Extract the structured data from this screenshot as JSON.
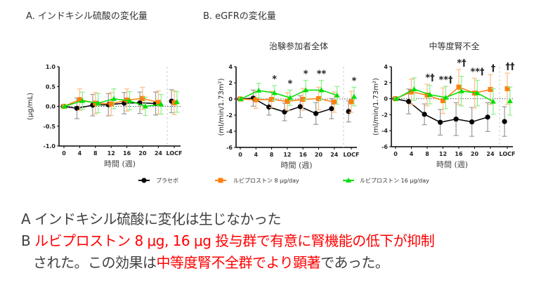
{
  "section_a_title": "A. インドキシル硫酸の変化量",
  "section_b_title": "B. eGFRの変化量",
  "colors": {
    "placebo": "#000000",
    "dose8": "#ff7f0e",
    "dose16": "#00e000",
    "placebo_err": "#a0a0a0",
    "dose8_err": "#ffc08a",
    "dose16_err": "#90f090",
    "highlight": "#ff0000"
  },
  "legend": [
    {
      "label": "プラセボ",
      "marker": "circle"
    },
    {
      "label": "ルビプロストン 8 μg/day",
      "marker": "square"
    },
    {
      "label": "ルビプロストン 16 μg/day",
      "marker": "triangle"
    }
  ],
  "chart_data": [
    {
      "type": "line",
      "title": "",
      "xlabel": "時間 (週)",
      "ylabel": "(μg/mL)",
      "categories": [
        "0",
        "4",
        "8",
        "12",
        "16",
        "20",
        "24",
        "LOCF"
      ],
      "ylim": [
        -1,
        1
      ],
      "yticks": [
        "1.0",
        "0.5",
        "0.0",
        "-0.5",
        "-1.0"
      ],
      "ytick_values": [
        1,
        0.5,
        0,
        -0.5,
        -1
      ],
      "reference_line": 0,
      "series": [
        {
          "name": "プラセボ",
          "values": [
            0,
            -0.05,
            0.03,
            0.04,
            0.08,
            0.09,
            0.07,
            0.13
          ],
          "error": [
            0.03,
            0.26,
            0.27,
            0.28,
            0.27,
            0.27,
            0.29,
            0.29
          ]
        },
        {
          "name": "ルビプロストン 8 μg/day",
          "values": [
            0,
            0.17,
            0.08,
            0.06,
            0.16,
            0.2,
            0.1,
            0.09
          ],
          "error": [
            0.03,
            0.27,
            0.27,
            0.29,
            0.28,
            0.28,
            0.29,
            0.3
          ]
        },
        {
          "name": "ルビプロストン 16 μg/day",
          "values": [
            0,
            0.14,
            0.08,
            0.19,
            0.14,
            0.0,
            0.05,
            0.11
          ],
          "error": [
            0.03,
            0.22,
            0.24,
            0.25,
            0.23,
            0.23,
            0.25,
            0.26
          ]
        }
      ],
      "annotations": []
    },
    {
      "type": "line",
      "title": "治験参加者全体",
      "xlabel": "時間 (週)",
      "ylabel": "(ml/min/1.73m²)",
      "categories": [
        "0",
        "4",
        "8",
        "12",
        "16",
        "20",
        "24",
        "LOCF"
      ],
      "ylim": [
        -6,
        4
      ],
      "yticks": [
        "4",
        "2",
        "0",
        "-2",
        "-4",
        "-6"
      ],
      "ytick_values": [
        4,
        2,
        0,
        -2,
        -4,
        -6
      ],
      "reference_line": 0,
      "series": [
        {
          "name": "プラセボ",
          "values": [
            0,
            0.1,
            -1.0,
            -1.6,
            -0.95,
            -1.8,
            -1.2,
            -1.55
          ],
          "error": [
            0.1,
            1.0,
            1.0,
            1.1,
            1.35,
            1.35,
            1.25,
            1.3
          ]
        },
        {
          "name": "ルビプロストン 8 μg/day",
          "values": [
            0,
            -0.1,
            -0.05,
            -0.3,
            -0.05,
            0.05,
            -0.4,
            -0.35
          ],
          "error": [
            0.1,
            1.05,
            1.0,
            1.1,
            1.35,
            1.4,
            1.25,
            1.3
          ]
        },
        {
          "name": "ルビプロストン 16 μg/day",
          "values": [
            0,
            1.05,
            0.75,
            0.15,
            1.1,
            1.1,
            0.45,
            0.3
          ],
          "error": [
            0.1,
            0.9,
            0.9,
            0.95,
            1.2,
            1.2,
            1.1,
            1.15
          ]
        }
      ],
      "annotations": [
        {
          "x": "8",
          "text": "*"
        },
        {
          "x": "12",
          "text": "*"
        },
        {
          "x": "16",
          "text": "*"
        },
        {
          "x": "20",
          "text": "**"
        },
        {
          "x": "LOCF",
          "text": "*"
        }
      ]
    },
    {
      "type": "line",
      "title": "中等度腎不全",
      "xlabel": "時間 (週)",
      "ylabel": "(ml/min/1.73m²)",
      "categories": [
        "0",
        "4",
        "8",
        "12",
        "16",
        "20",
        "24",
        "LOCF"
      ],
      "ylim": [
        -6,
        4
      ],
      "yticks": [
        "4",
        "2",
        "0",
        "-2",
        "-4",
        "-6"
      ],
      "ytick_values": [
        4,
        2,
        0,
        -2,
        -4,
        -6
      ],
      "reference_line": 0,
      "series": [
        {
          "name": "プラセボ",
          "values": [
            0,
            -0.35,
            -1.95,
            -2.95,
            -2.55,
            -2.9,
            -2.3,
            -2.85
          ],
          "error": [
            0.1,
            1.55,
            1.3,
            1.6,
            2.05,
            1.8,
            1.8,
            1.85
          ]
        },
        {
          "name": "ルビプロストン 8 μg/day",
          "values": [
            0,
            0.85,
            0.45,
            -0.25,
            1.45,
            0.7,
            1.15,
            1.25
          ],
          "error": [
            0.1,
            1.6,
            1.35,
            1.6,
            2.2,
            1.85,
            1.85,
            1.95
          ]
        },
        {
          "name": "ルビプロストン 16 μg/day",
          "values": [
            0,
            1.2,
            0.5,
            0.15,
            0.95,
            0.7,
            -0.35,
            -0.3
          ],
          "error": [
            0.1,
            1.4,
            1.15,
            1.4,
            1.85,
            1.6,
            1.6,
            1.75
          ]
        }
      ],
      "annotations": [
        {
          "x": "8",
          "text": "*†"
        },
        {
          "x": "12",
          "text": "**†"
        },
        {
          "x": "16",
          "text": "*†"
        },
        {
          "x": "20",
          "text": "**†"
        },
        {
          "x": "24",
          "text": "†"
        },
        {
          "x": "LOCF",
          "text": "††"
        }
      ]
    }
  ],
  "summary": {
    "line_a_label": "A",
    "line_a_text": "インドキシル硫酸に変化は生じなかった",
    "line_b_label": "B",
    "line_b_red1": "ルビプロストン 8 μg, 16 μg 投与群で有意に腎機能の低下が抑制",
    "line_c_text1": "された。この効果は",
    "line_c_red": "中等度腎不全群でより顕著",
    "line_c_text2": "であった。"
  }
}
